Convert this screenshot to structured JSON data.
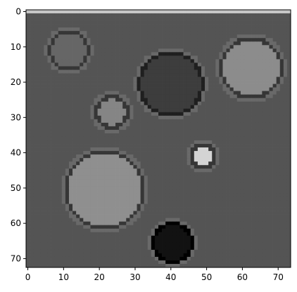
{
  "chart_data": {
    "type": "heatmap",
    "title": "",
    "xlabel": "",
    "ylabel": "",
    "colormap": "gray",
    "image_size": [
      74,
      73
    ],
    "xlim": [
      -0.5,
      73.5
    ],
    "ylim": [
      72.5,
      -0.5
    ],
    "x_ticks": [
      0,
      10,
      20,
      30,
      40,
      50,
      60,
      70
    ],
    "y_ticks": [
      0,
      10,
      20,
      30,
      40,
      50,
      60,
      70
    ],
    "x_tick_labels": [
      "0",
      "10",
      "20",
      "30",
      "40",
      "50",
      "60",
      "70"
    ],
    "y_tick_labels": [
      "0",
      "10",
      "20",
      "30",
      "40",
      "50",
      "60",
      "70"
    ],
    "background_intensity": 0.33,
    "blobs": [
      {
        "cx": 11.5,
        "cy": 11.0,
        "r": 5.5,
        "intensity": 0.4
      },
      {
        "cx": 40.0,
        "cy": 20.5,
        "r": 9.0,
        "intensity": 0.24
      },
      {
        "cx": 62.5,
        "cy": 16.0,
        "r": 8.5,
        "intensity": 0.55
      },
      {
        "cx": 23.5,
        "cy": 28.5,
        "r": 4.5,
        "intensity": 0.52
      },
      {
        "cx": 49.0,
        "cy": 41.0,
        "r": 3.5,
        "intensity": 0.83
      },
      {
        "cx": 21.5,
        "cy": 50.5,
        "r": 11.0,
        "intensity": 0.56
      },
      {
        "cx": 40.5,
        "cy": 65.5,
        "r": 5.5,
        "intensity": 0.07
      }
    ]
  }
}
